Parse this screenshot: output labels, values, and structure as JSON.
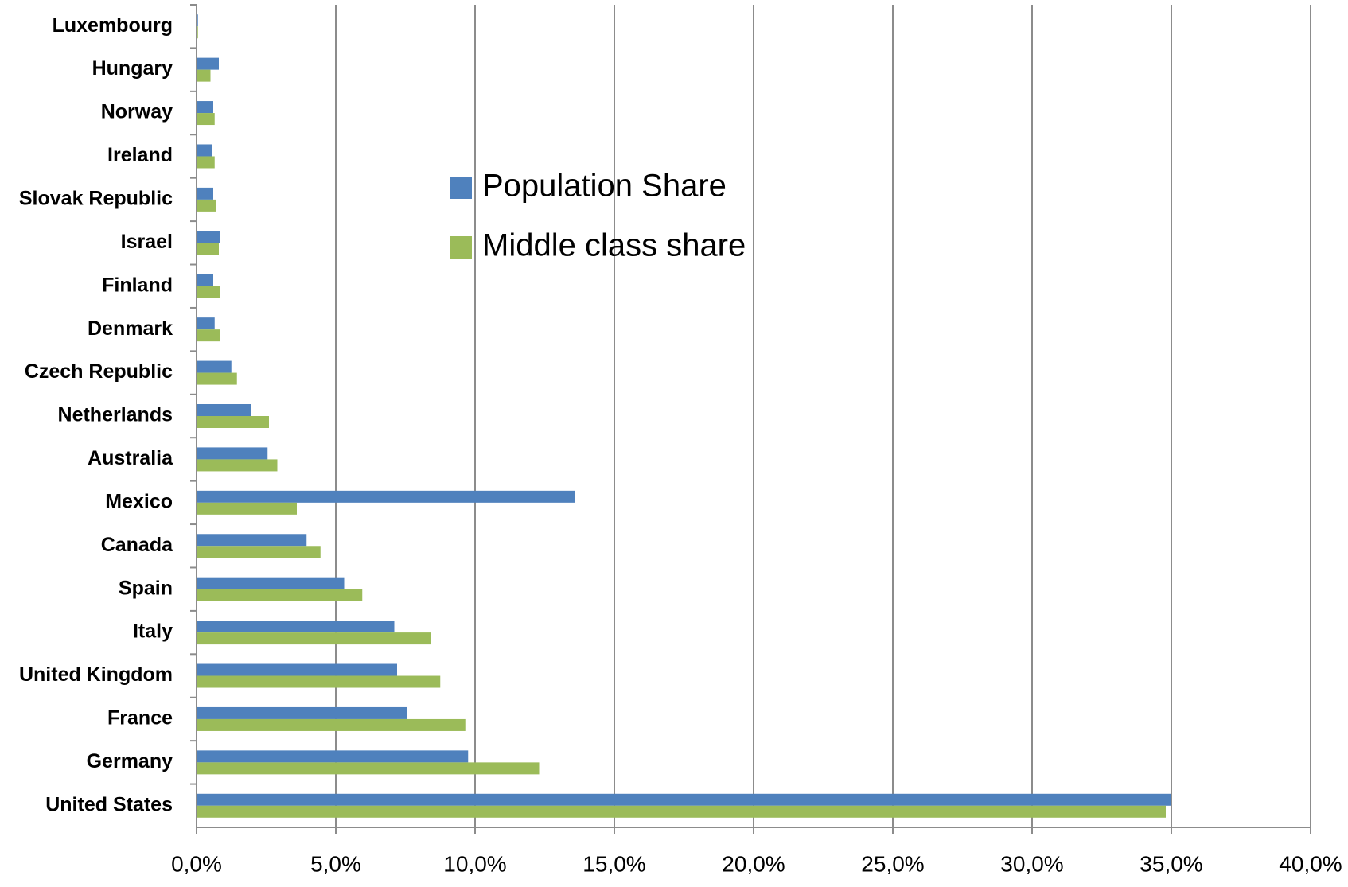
{
  "chart_data": {
    "type": "hbar",
    "categories": [
      "Luxembourg",
      "Hungary",
      "Norway",
      "Ireland",
      "Slovak Republic",
      "Israel",
      "Finland",
      "Denmark",
      "Czech Republic",
      "Netherlands",
      "Australia",
      "Mexico",
      "Canada",
      "Spain",
      "Italy",
      "United Kingdom",
      "France",
      "Germany",
      "United States"
    ],
    "series": [
      {
        "name": "Population Share",
        "color": "#4f81bd",
        "values": [
          0.05,
          0.8,
          0.6,
          0.55,
          0.6,
          0.85,
          0.6,
          0.65,
          1.25,
          1.95,
          2.55,
          13.6,
          3.95,
          5.3,
          7.1,
          7.2,
          7.55,
          9.75,
          35.0
        ]
      },
      {
        "name": "Middle class share",
        "color": "#9bbb59",
        "values": [
          0.05,
          0.5,
          0.65,
          0.65,
          0.7,
          0.8,
          0.85,
          0.85,
          1.45,
          2.6,
          2.9,
          3.6,
          4.45,
          5.95,
          8.4,
          8.75,
          9.65,
          12.3,
          34.8
        ]
      }
    ],
    "xlim": [
      0,
      40
    ],
    "xticks": [
      {
        "value": 0,
        "label": "0,0%"
      },
      {
        "value": 5,
        "label": "5,0%"
      },
      {
        "value": 10,
        "label": "10,0%"
      },
      {
        "value": 15,
        "label": "15,0%"
      },
      {
        "value": 20,
        "label": "20,0%"
      },
      {
        "value": 25,
        "label": "25,0%"
      },
      {
        "value": 30,
        "label": "30,0%"
      },
      {
        "value": 35,
        "label": "35,0%"
      },
      {
        "value": 40,
        "label": "40,0%"
      }
    ],
    "grid": true
  }
}
